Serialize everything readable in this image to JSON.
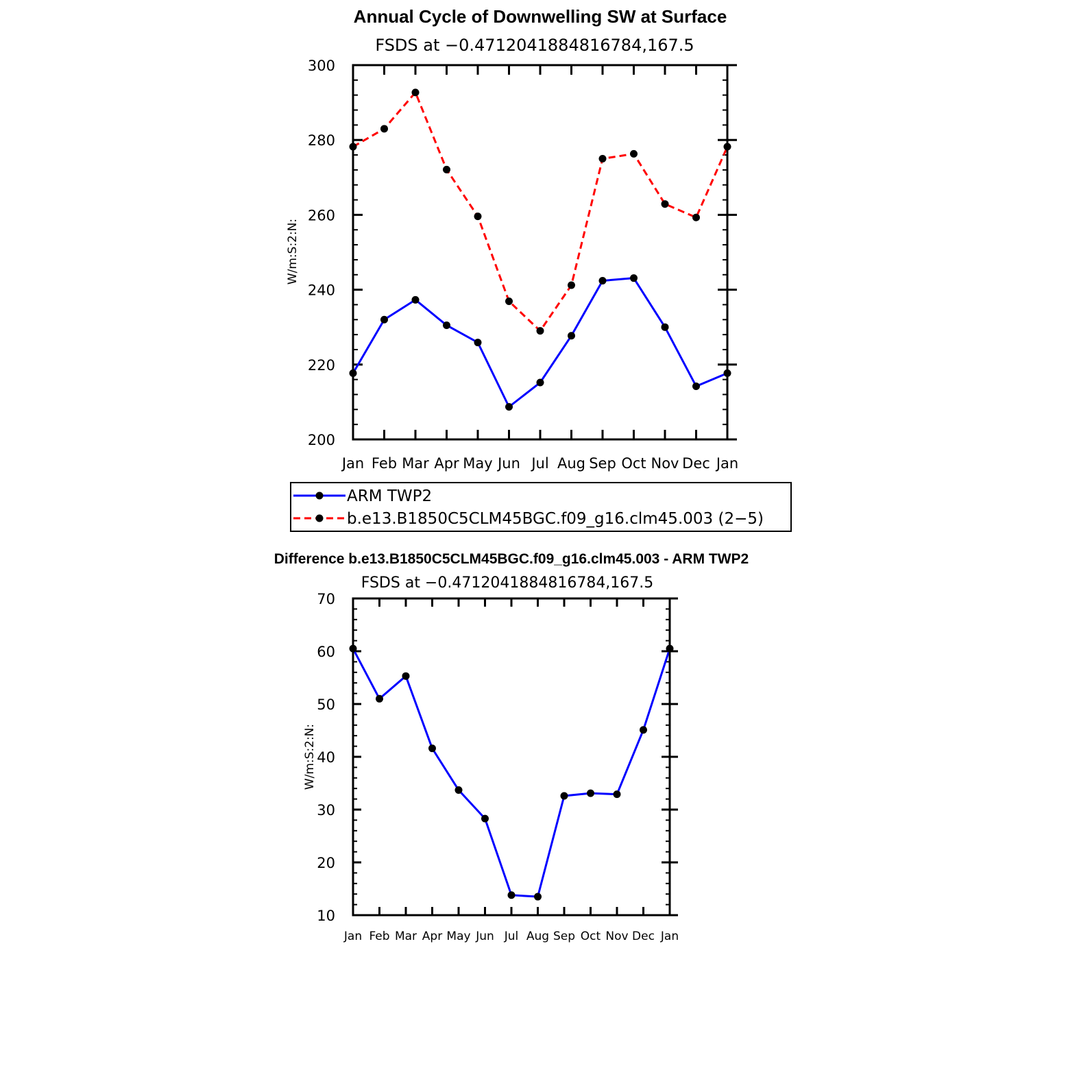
{
  "chart_data": [
    {
      "type": "line",
      "title": "Annual Cycle of Downwelling SW at Surface",
      "subtitle": "FSDS at −0.4712041884816784,167.5",
      "xlabel": "",
      "ylabel": "W/m:S:2:N:",
      "categories": [
        "Jan",
        "Feb",
        "Mar",
        "Apr",
        "May",
        "Jun",
        "Jul",
        "Aug",
        "Sep",
        "Oct",
        "Nov",
        "Dec",
        "Jan"
      ],
      "ylim": [
        200,
        300
      ],
      "yticks": [
        "200",
        "220",
        "240",
        "260",
        "280",
        "300"
      ],
      "series": [
        {
          "name": "ARM TWP2",
          "color": "#0000ff",
          "style": "solid",
          "values": [
            217.7,
            232.0,
            237.3,
            230.5,
            225.9,
            208.7,
            215.2,
            227.7,
            242.4,
            243.1,
            230.0,
            214.2,
            217.7
          ]
        },
        {
          "name": "b.e13.B1850C5CLM45BGC.f09_g16.clm45.003 (2−5)",
          "color": "#ff0000",
          "style": "dashed",
          "values": [
            278.2,
            283.0,
            292.7,
            272.1,
            259.6,
            236.9,
            229.0,
            241.2,
            275.0,
            276.3,
            262.9,
            259.3,
            278.2
          ]
        }
      ],
      "legend": {
        "placement": "bottom",
        "items": [
          {
            "label": "ARM TWP2",
            "color": "#0000ff",
            "style": "solid"
          },
          {
            "label": "b.e13.B1850C5CLM45BGC.f09_g16.clm45.003 (2−5)",
            "color": "#ff0000",
            "style": "dashed"
          }
        ]
      }
    },
    {
      "type": "line",
      "title": "Difference b.e13.B1850C5CLM45BGC.f09_g16.clm45.003 - ARM TWP2",
      "subtitle": "FSDS at −0.4712041884816784,167.5",
      "xlabel": "",
      "ylabel": "W/m:S:2:N:",
      "categories": [
        "Jan",
        "Feb",
        "Mar",
        "Apr",
        "May",
        "Jun",
        "Jul",
        "Aug",
        "Sep",
        "Oct",
        "Nov",
        "Dec",
        "Jan"
      ],
      "ylim": [
        10,
        70
      ],
      "yticks": [
        "10",
        "20",
        "30",
        "40",
        "50",
        "60",
        "70"
      ],
      "series": [
        {
          "name": "Difference",
          "color": "#0000ff",
          "style": "solid",
          "values": [
            60.5,
            51.0,
            55.3,
            41.6,
            33.7,
            28.3,
            13.8,
            13.5,
            32.6,
            33.1,
            32.9,
            45.1,
            60.5
          ]
        }
      ]
    }
  ]
}
